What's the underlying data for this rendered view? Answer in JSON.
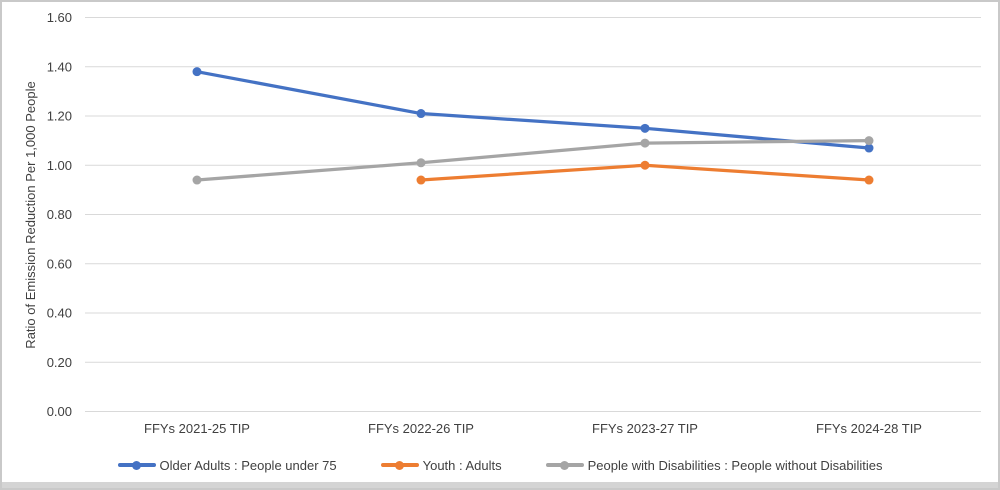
{
  "chart_data": {
    "type": "line",
    "title": "",
    "xlabel": "",
    "ylabel": "Ratio of Emission Reduction Per 1,000 People",
    "categories": [
      "FFYs 2021-25 TIP",
      "FFYs 2022-26 TIP",
      "FFYs 2023-27 TIP",
      "FFYs 2024-28 TIP"
    ],
    "y_ticks": [
      "0.00",
      "0.20",
      "0.40",
      "0.60",
      "0.80",
      "1.00",
      "1.20",
      "1.40",
      "1.60"
    ],
    "ylim": [
      0,
      1.6
    ],
    "grid": true,
    "legend_position": "bottom",
    "gridline_color": "#D9D9D9",
    "axis_text_color": "#404040",
    "series": [
      {
        "name": "Older Adults : People under 75",
        "color": "#4472C4",
        "values": [
          1.38,
          1.21,
          1.15,
          1.07
        ]
      },
      {
        "name": "Youth : Adults",
        "color": "#ED7D31",
        "values": [
          null,
          0.94,
          1.0,
          0.94
        ]
      },
      {
        "name": "People with Disabilities : People without Disabilities",
        "color": "#A5A5A5",
        "values": [
          0.94,
          1.01,
          1.09,
          1.1
        ]
      }
    ]
  }
}
